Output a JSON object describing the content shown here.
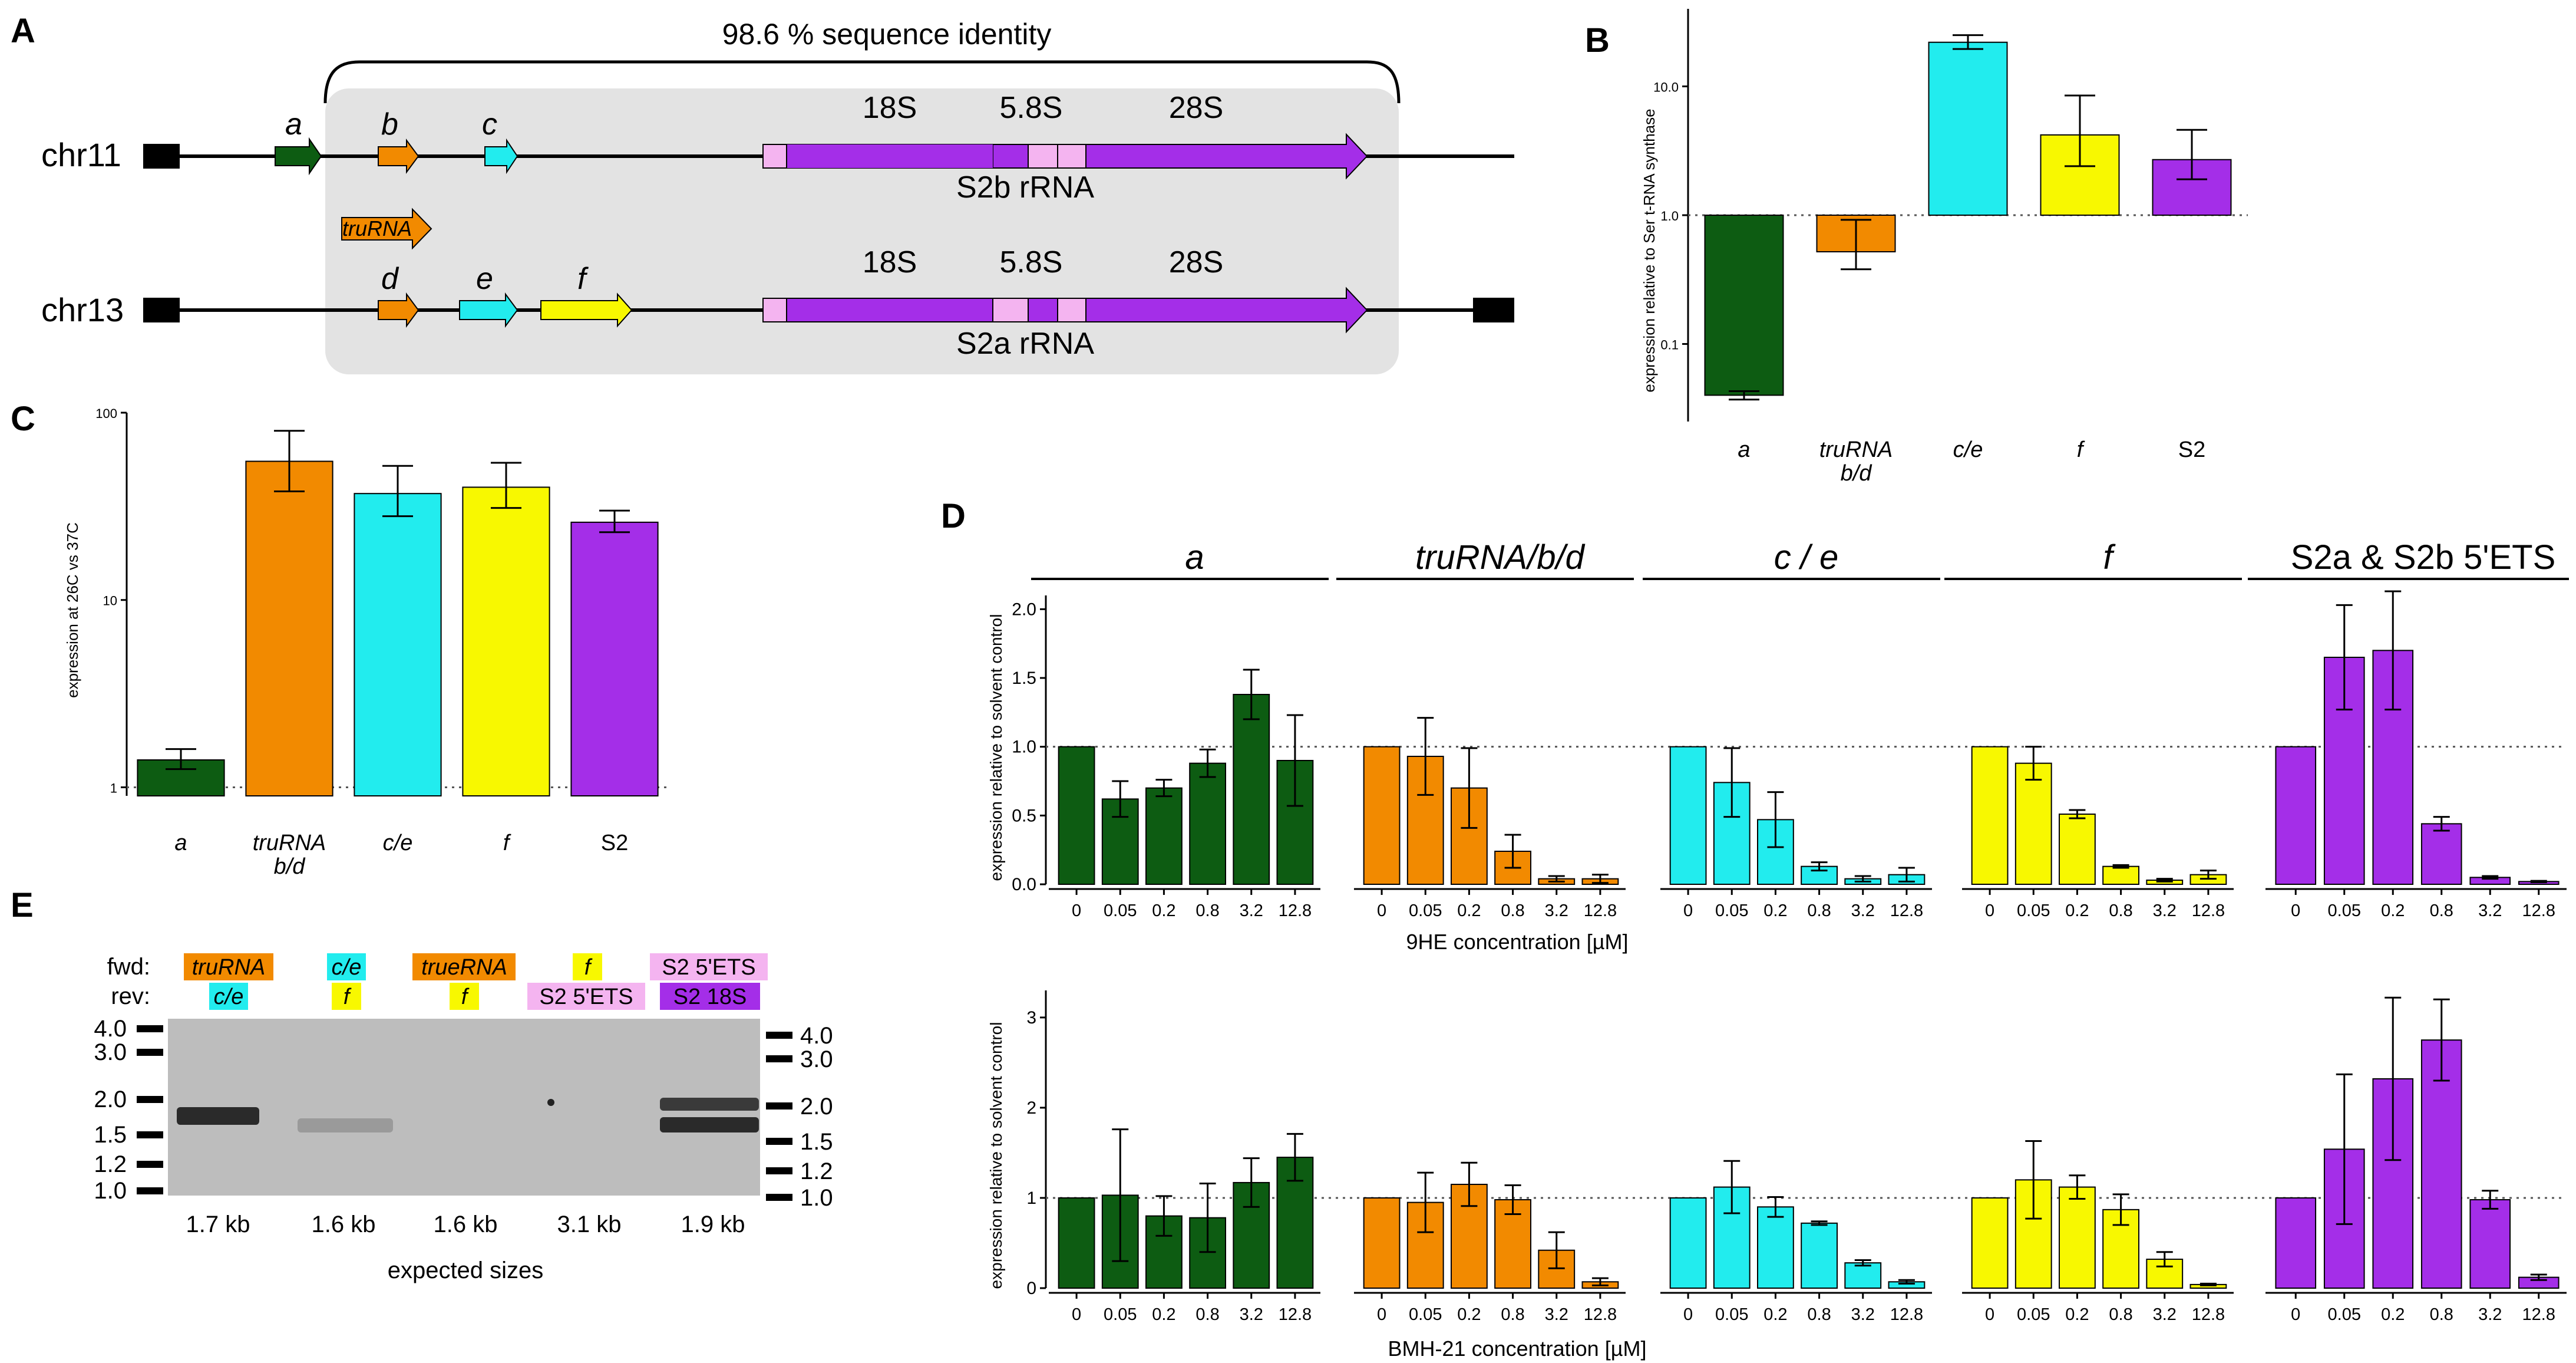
{
  "colors": {
    "green": "#0d5c12",
    "orange": "#f28a00",
    "cyan": "#22ecee",
    "yellow": "#f8f800",
    "purple": "#a42ee8",
    "pink": "#f4b4f0",
    "gray_box": "#e3e3e3",
    "gel": "#bdbdbd"
  },
  "panel_a": {
    "letter": "A",
    "identity_label": "98.6 % sequence identity",
    "chr11": {
      "label": "chr11",
      "arrows": [
        "a",
        "b",
        "c"
      ],
      "rrna_label": "S2b rRNA",
      "segments": [
        "18S",
        "5.8S",
        "28S"
      ]
    },
    "trurna_label": "truRNA",
    "chr13": {
      "label": "chr13",
      "arrows": [
        "d",
        "e",
        "f"
      ],
      "rrna_label": "S2a rRNA",
      "segments": [
        "18S",
        "5.8S",
        "28S"
      ]
    }
  },
  "panel_b": {
    "letter": "B",
    "chart_data": {
      "type": "bar",
      "scale": "log",
      "ylabel": "expression relative to Ser t-RNA synthase",
      "categories": [
        "a",
        "truRNA\nb/d",
        "c/e",
        "f",
        "S2"
      ],
      "category_lines": [
        [
          "a"
        ],
        [
          "truRNA",
          "b/d"
        ],
        [
          "c/e"
        ],
        [
          "f"
        ],
        [
          "S2"
        ]
      ],
      "values": [
        0.04,
        0.52,
        22.0,
        4.2,
        2.7
      ],
      "err_low": [
        0.037,
        0.38,
        19.5,
        2.4,
        1.9
      ],
      "err_high": [
        0.043,
        0.92,
        25.0,
        8.5,
        4.6
      ],
      "colors": [
        "#0d5c12",
        "#f28a00",
        "#22ecee",
        "#f8f800",
        "#a42ee8"
      ],
      "ticks": [
        "0.1",
        "1.0",
        "10.0"
      ],
      "tick_values": [
        0.1,
        1,
        10
      ],
      "ylim": [
        0.025,
        40
      ],
      "baseline": 1
    }
  },
  "panel_c": {
    "letter": "C",
    "chart_data": {
      "type": "bar",
      "scale": "log",
      "ylabel": "expression at 26C vs 37C",
      "categories": [
        "a",
        "truRNA\nb/d",
        "c/e",
        "f",
        "S2"
      ],
      "category_lines": [
        [
          "a"
        ],
        [
          "truRNA",
          "b/d"
        ],
        [
          "c/e"
        ],
        [
          "f"
        ],
        [
          "S2"
        ]
      ],
      "values": [
        1.4,
        55,
        37,
        40,
        26
      ],
      "err_low": [
        1.25,
        38,
        28,
        31,
        23
      ],
      "err_high": [
        1.6,
        80,
        52,
        54,
        30
      ],
      "colors": [
        "#0d5c12",
        "#f28a00",
        "#22ecee",
        "#f8f800",
        "#a42ee8"
      ],
      "ticks": [
        "1",
        "10",
        "100"
      ],
      "tick_values": [
        1,
        10,
        100
      ],
      "ylim": [
        0.9,
        100
      ],
      "baseline": 1
    }
  },
  "panel_d": {
    "letter": "D",
    "group_titles": [
      "a",
      "truRNA/b/d",
      "c / e",
      "f",
      "S2a & S2b 5'ETS"
    ],
    "group_italic": [
      true,
      true,
      true,
      true,
      false
    ],
    "colors": [
      "#0d5c12",
      "#f28a00",
      "#22ecee",
      "#f8f800",
      "#a42ee8"
    ],
    "conc_labels": [
      "0",
      "0.05",
      "0.2",
      "0.8",
      "3.2",
      "12.8"
    ],
    "top_chart": {
      "chart_data": {
        "type": "bar",
        "ylabel": "expression relative to solvent control",
        "xlabel": "9HE concentration [µM]",
        "ylim": [
          0,
          2.1
        ],
        "ticks": [
          "0.0",
          "0.5",
          "1.0",
          "1.5",
          "2.0"
        ],
        "tick_values": [
          0,
          0.5,
          1.0,
          1.5,
          2.0
        ],
        "baseline": 1,
        "series": [
          {
            "name": "a",
            "values": [
              1.0,
              0.62,
              0.7,
              0.88,
              1.38,
              0.9
            ],
            "errors": [
              0,
              0.13,
              0.06,
              0.1,
              0.18,
              0.33
            ]
          },
          {
            "name": "truRNA/b/d",
            "values": [
              1.0,
              0.93,
              0.7,
              0.24,
              0.04,
              0.04
            ],
            "errors": [
              0,
              0.28,
              0.29,
              0.12,
              0.02,
              0.03
            ]
          },
          {
            "name": "c / e",
            "values": [
              1.0,
              0.74,
              0.47,
              0.13,
              0.04,
              0.07
            ],
            "errors": [
              0,
              0.25,
              0.2,
              0.03,
              0.02,
              0.05
            ]
          },
          {
            "name": "f",
            "values": [
              1.0,
              0.88,
              0.51,
              0.13,
              0.03,
              0.07
            ],
            "errors": [
              0,
              0.12,
              0.03,
              0.01,
              0.01,
              0.03
            ]
          },
          {
            "name": "S2a & S2b 5'ETS",
            "values": [
              1.0,
              1.65,
              1.7,
              0.44,
              0.05,
              0.02
            ],
            "errors": [
              0,
              0.38,
              0.43,
              0.05,
              0.01,
              0.005
            ]
          }
        ]
      }
    },
    "bottom_chart": {
      "chart_data": {
        "type": "bar",
        "ylabel": "expression relative to solvent control",
        "xlabel": "BMH-21 concentration [µM]",
        "ylim": [
          0,
          3.3
        ],
        "ticks": [
          "0",
          "1",
          "2",
          "3"
        ],
        "tick_values": [
          0,
          1,
          2,
          3
        ],
        "baseline": 1,
        "series": [
          {
            "name": "a",
            "values": [
              1.0,
              1.03,
              0.8,
              0.78,
              1.17,
              1.45
            ],
            "errors": [
              0,
              0.73,
              0.22,
              0.38,
              0.27,
              0.26
            ]
          },
          {
            "name": "truRNA/b/d",
            "values": [
              1.0,
              0.95,
              1.15,
              0.98,
              0.42,
              0.07
            ],
            "errors": [
              0,
              0.33,
              0.24,
              0.16,
              0.2,
              0.04
            ]
          },
          {
            "name": "c / e",
            "values": [
              1.0,
              1.12,
              0.9,
              0.72,
              0.28,
              0.07
            ],
            "errors": [
              0,
              0.29,
              0.11,
              0.02,
              0.03,
              0.02
            ]
          },
          {
            "name": "f",
            "values": [
              1.0,
              1.2,
              1.12,
              0.87,
              0.32,
              0.04
            ],
            "errors": [
              0,
              0.43,
              0.13,
              0.17,
              0.08,
              0.01
            ]
          },
          {
            "name": "S2a & S2b 5'ETS",
            "values": [
              1.0,
              1.54,
              2.32,
              2.75,
              0.98,
              0.12
            ],
            "errors": [
              0,
              0.83,
              0.9,
              0.45,
              0.1,
              0.03
            ]
          }
        ]
      }
    }
  },
  "panel_e": {
    "letter": "E",
    "fwd_label": "fwd:",
    "rev_label": "rev:",
    "lanes": [
      {
        "fwd": "truRNA",
        "rev": "c/e",
        "size": "1.7 kb"
      },
      {
        "fwd": "c/e",
        "rev": "f",
        "size": "1.6 kb"
      },
      {
        "fwd": "trueRNA",
        "rev": "f",
        "size": "1.6 kb"
      },
      {
        "fwd": "f",
        "rev": "S2 5'ETS",
        "size": "3.1 kb"
      },
      {
        "fwd": "S2 5'ETS",
        "rev": "S2 18S",
        "size": "1.9 kb"
      }
    ],
    "ladder": [
      "4.0",
      "3.0",
      "2.0",
      "1.5",
      "1.2",
      "1.0"
    ],
    "caption": "expected sizes"
  }
}
